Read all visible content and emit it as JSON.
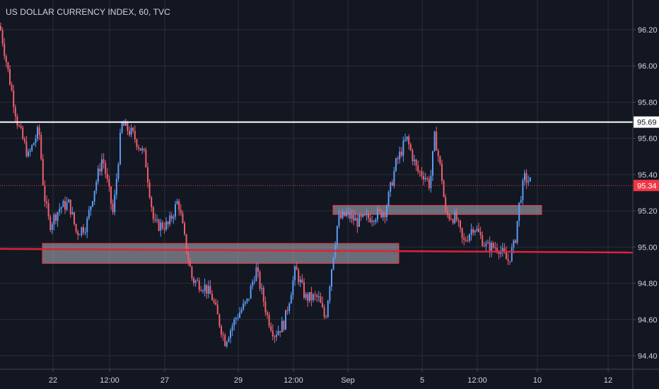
{
  "chart_data": {
    "type": "candlestick",
    "title": "US DOLLAR CURRENCY INDEX, 60, TVC",
    "ylim": [
      94.36,
      96.3
    ],
    "y_ticks": [
      "96.20",
      "96.00",
      "95.80",
      "95.60",
      "95.40",
      "95.20",
      "95.00",
      "94.80",
      "94.60",
      "94.40"
    ],
    "x_ticks": [
      "22",
      "12:00",
      "27",
      "29",
      "12:00",
      "Sep",
      "5",
      "12:00",
      "10",
      "12"
    ],
    "grid": true,
    "price_path": [
      [
        0,
        96.22
      ],
      [
        10,
        96.0
      ],
      [
        25,
        95.68
      ],
      [
        40,
        95.5
      ],
      [
        55,
        95.65
      ],
      [
        62,
        95.3
      ],
      [
        70,
        95.12
      ],
      [
        85,
        95.22
      ],
      [
        98,
        95.24
      ],
      [
        108,
        95.08
      ],
      [
        122,
        95.12
      ],
      [
        132,
        95.3
      ],
      [
        145,
        95.5
      ],
      [
        160,
        95.18
      ],
      [
        172,
        95.68
      ],
      [
        188,
        95.62
      ],
      [
        205,
        95.5
      ],
      [
        218,
        95.12
      ],
      [
        238,
        95.12
      ],
      [
        252,
        95.26
      ],
      [
        262,
        95.02
      ],
      [
        272,
        94.82
      ],
      [
        290,
        94.78
      ],
      [
        300,
        94.72
      ],
      [
        318,
        94.48
      ],
      [
        335,
        94.62
      ],
      [
        350,
        94.7
      ],
      [
        362,
        94.88
      ],
      [
        378,
        94.62
      ],
      [
        388,
        94.52
      ],
      [
        402,
        94.58
      ],
      [
        418,
        94.88
      ],
      [
        432,
        94.72
      ],
      [
        450,
        94.72
      ],
      [
        460,
        94.6
      ],
      [
        470,
        94.92
      ],
      [
        478,
        95.15
      ],
      [
        490,
        95.18
      ],
      [
        505,
        95.14
      ],
      [
        520,
        95.16
      ],
      [
        545,
        95.2
      ],
      [
        560,
        95.46
      ],
      [
        575,
        95.6
      ],
      [
        590,
        95.42
      ],
      [
        600,
        95.4
      ],
      [
        608,
        95.34
      ],
      [
        615,
        95.62
      ],
      [
        625,
        95.38
      ],
      [
        630,
        95.18
      ],
      [
        645,
        95.16
      ],
      [
        655,
        95.02
      ],
      [
        670,
        95.12
      ],
      [
        688,
        95.0
      ],
      [
        705,
        95.0
      ],
      [
        718,
        94.92
      ],
      [
        728,
        95.02
      ],
      [
        735,
        95.26
      ],
      [
        742,
        95.38
      ],
      [
        750,
        95.36
      ]
    ],
    "resistance_line": 95.69,
    "last_price": 95.34,
    "price_labels": [
      "95.69",
      "95.34"
    ],
    "trend_line": [
      94.99,
      94.97
    ],
    "zones": [
      {
        "x_start": 60,
        "x_end": 564,
        "y_low": 94.91,
        "y_high": 95.02
      },
      {
        "x_start": 471,
        "x_end": 766,
        "y_low": 95.18,
        "y_high": 95.23
      }
    ],
    "colors": {
      "background": "#131722",
      "grid": "#2a2e39",
      "up": "#5b9cf6",
      "down": "#ef5f6e",
      "resistance": "#ffffff",
      "last_price": "#f23645",
      "trend": "#e0213a",
      "zone_fill": "#b2b5be",
      "zone_stroke": "#f23645",
      "axis_text": "#d1d4dc"
    }
  }
}
